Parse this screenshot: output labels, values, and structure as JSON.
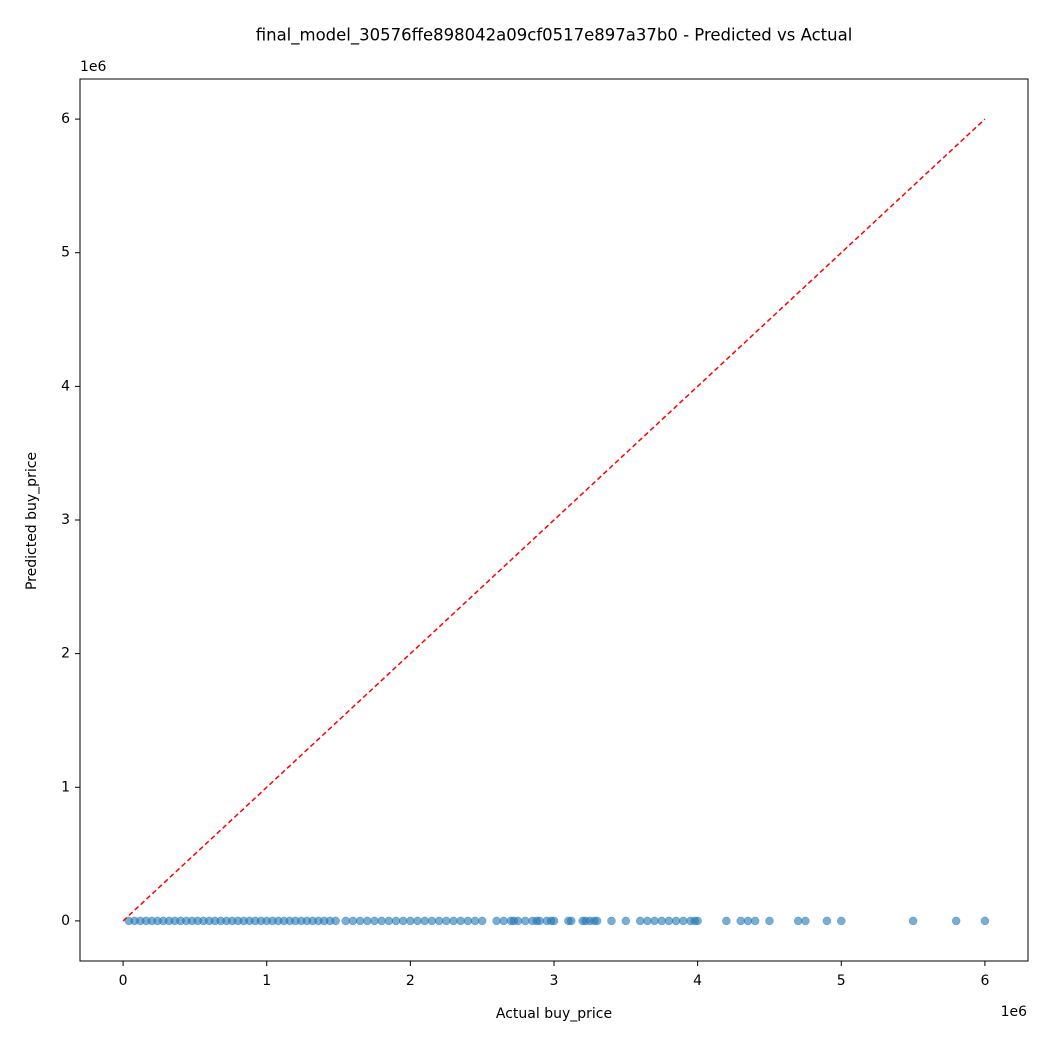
{
  "chart_data": {
    "type": "scatter",
    "title": "final_model_30576ffe898042a09cf0517e897a37b0 - Predicted vs Actual",
    "x_label": "Actual buy_price",
    "y_label": "Predicted buy_price",
    "x_offset_label": "1e6",
    "y_offset_label": "1e6",
    "xlim": [
      -300000,
      6300000
    ],
    "ylim": [
      -300000,
      6300000
    ],
    "xticks": [
      0,
      {
        "value": 1000000,
        "label": "1"
      },
      {
        "value": 2000000,
        "label": "2"
      },
      {
        "value": 3000000,
        "label": "3"
      },
      {
        "value": 4000000,
        "label": "4"
      },
      {
        "value": 5000000,
        "label": "5"
      },
      {
        "value": 6000000,
        "label": "6"
      }
    ],
    "yticks": [
      0,
      {
        "value": 1000000,
        "label": "1"
      },
      {
        "value": 2000000,
        "label": "2"
      },
      {
        "value": 3000000,
        "label": "3"
      },
      {
        "value": 4000000,
        "label": "4"
      },
      {
        "value": 5000000,
        "label": "5"
      },
      {
        "value": 6000000,
        "label": "6"
      }
    ],
    "color": "#1f77b4",
    "x": [
      40000,
      80000,
      120000,
      160000,
      200000,
      240000,
      280000,
      320000,
      360000,
      400000,
      440000,
      480000,
      520000,
      560000,
      600000,
      640000,
      680000,
      720000,
      760000,
      800000,
      840000,
      880000,
      920000,
      960000,
      1000000,
      1040000,
      1080000,
      1120000,
      1160000,
      1200000,
      1240000,
      1280000,
      1320000,
      1360000,
      1400000,
      1440000,
      1480000,
      1550000,
      1600000,
      1650000,
      1700000,
      1750000,
      1800000,
      1850000,
      1900000,
      1950000,
      2000000,
      2050000,
      2100000,
      2150000,
      2200000,
      2250000,
      2300000,
      2350000,
      2400000,
      2450000,
      2500000,
      2600000,
      2650000,
      2700000,
      2720000,
      2750000,
      2800000,
      2850000,
      2880000,
      2900000,
      2950000,
      2980000,
      3000000,
      3100000,
      3120000,
      3200000,
      3220000,
      3250000,
      3280000,
      3300000,
      3400000,
      3500000,
      3600000,
      3650000,
      3700000,
      3750000,
      3800000,
      3850000,
      3900000,
      3950000,
      3980000,
      4000000,
      4200000,
      4300000,
      4350000,
      4400000,
      4500000,
      4700000,
      4750000,
      4900000,
      5000000,
      5500000,
      5800000,
      6000000
    ],
    "y": [
      0,
      0,
      0,
      0,
      0,
      0,
      0,
      0,
      0,
      0,
      0,
      0,
      0,
      0,
      0,
      0,
      0,
      0,
      0,
      0,
      0,
      0,
      0,
      0,
      0,
      0,
      0,
      0,
      0,
      0,
      0,
      0,
      0,
      0,
      0,
      0,
      0,
      0,
      0,
      0,
      0,
      0,
      0,
      0,
      0,
      0,
      0,
      0,
      0,
      0,
      0,
      0,
      0,
      0,
      0,
      0,
      0,
      0,
      0,
      0,
      0,
      0,
      0,
      0,
      0,
      0,
      0,
      0,
      0,
      0,
      0,
      0,
      0,
      0,
      0,
      0,
      0,
      0,
      0,
      0,
      0,
      0,
      0,
      0,
      0,
      0,
      0,
      0,
      0,
      0,
      0,
      0,
      0,
      0,
      0,
      0,
      0,
      0,
      0,
      0
    ],
    "reference_line": {
      "x": [
        0,
        6000000
      ],
      "y": [
        0,
        6000000
      ],
      "color": "#ff0000"
    }
  }
}
